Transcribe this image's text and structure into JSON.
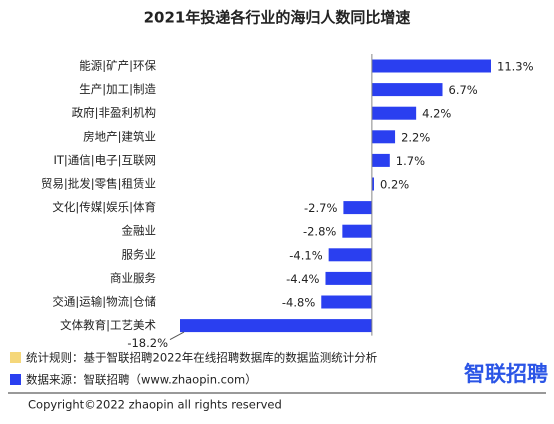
{
  "chart_data": {
    "type": "bar",
    "orientation": "horizontal",
    "title": "2021年投递各行业的海归人数同比增速",
    "categories": [
      "能源|矿产|环保",
      "生产|加工|制造",
      "政府|非盈利机构",
      "房地产|建筑业",
      "IT|通信|电子|互联网",
      "贸易|批发|零售|租赁业",
      "文化|传媒|娱乐|体育",
      "金融业",
      "服务业",
      "商业服务",
      "交通|运输|物流|仓储",
      "文体教育|工艺美术"
    ],
    "values": [
      11.3,
      6.7,
      4.2,
      2.2,
      1.7,
      0.2,
      -2.7,
      -2.8,
      -4.1,
      -4.4,
      -4.8,
      -18.2
    ],
    "value_labels": [
      "11.3%",
      "6.7%",
      "4.2%",
      "2.2%",
      "1.7%",
      "0.2%",
      "-2.7%",
      "-2.8%",
      "-4.1%",
      "-4.4%",
      "-4.8%",
      "-18.2%"
    ],
    "color": "#2a3ff0"
  },
  "footer": {
    "notes": [
      {
        "color": "#f5d77a",
        "text": "统计规则：基于智联招聘2022年在线招聘数据库的数据监测统计分析"
      },
      {
        "color": "#2a3ff0",
        "text": "数据来源：智联招聘（www.zhaopin.com）"
      }
    ],
    "logo": "智联招聘",
    "copyright": "Copyright©2022 zhaopin all rights reserved"
  }
}
